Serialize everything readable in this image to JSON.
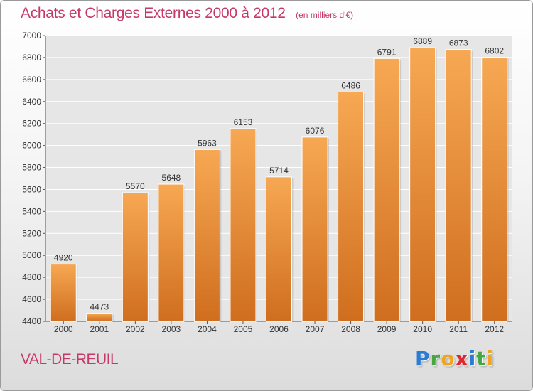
{
  "header": {
    "title": "Achats et Charges Externes 2000 à 2012",
    "units": "(en milliers d'€)"
  },
  "footer": {
    "place": "VAL-DE-REUIL",
    "brand_letters": [
      {
        "char": "P",
        "color": "#2a7bd3"
      },
      {
        "char": "r",
        "color": "#43a83f"
      },
      {
        "char": "o",
        "color": "#f2a51a"
      },
      {
        "char": "x",
        "color": "#e0262f"
      },
      {
        "char": "i",
        "color": "#2a7bd3"
      },
      {
        "char": "t",
        "color": "#43a83f"
      },
      {
        "char": "i",
        "color": "#f2a51a"
      }
    ]
  },
  "chart_data": {
    "type": "bar",
    "title": "Achats et Charges Externes 2000 à 2012",
    "subtitle": "(en milliers d'€)",
    "xlabel": "",
    "ylabel": "",
    "categories": [
      "2000",
      "2001",
      "2002",
      "2003",
      "2004",
      "2005",
      "2006",
      "2007",
      "2008",
      "2009",
      "2010",
      "2011",
      "2012"
    ],
    "values": [
      4920,
      4473,
      5570,
      5648,
      5963,
      6153,
      5714,
      6076,
      6486,
      6791,
      6889,
      6873,
      6802
    ],
    "ylim": [
      4400,
      7000
    ],
    "yticks": [
      4400,
      4600,
      4800,
      5000,
      5200,
      5400,
      5600,
      5800,
      6000,
      6200,
      6400,
      6600,
      6800,
      7000
    ],
    "grid": true,
    "legend": "none",
    "colors": {
      "bar_top": "#f7a853",
      "bar_bottom": "#cf6e1e",
      "plot_bg": "#e6e6e6",
      "grid": "#ffffff"
    }
  }
}
